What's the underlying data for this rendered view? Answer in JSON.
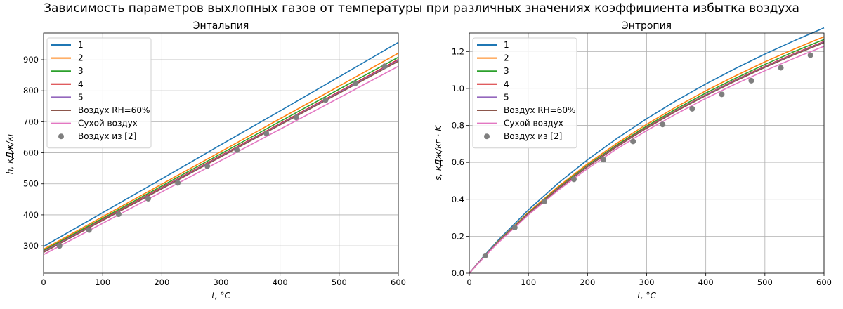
{
  "figure": {
    "suptitle": "Зависимость параметров выхлопных газов от температуры при различных значениях коэффициента избытка воздуха"
  },
  "colors": {
    "1": "#1f77b4",
    "2": "#ff7f0e",
    "3": "#2ca02c",
    "4": "#d62728",
    "5": "#9467bd",
    "Воздух RH=60%": "#8c564b",
    "Сухой воздух": "#e377c2",
    "Воздух из [2]": "#7f7f7f"
  },
  "chart_data": [
    {
      "type": "line",
      "title": "Энтальпия",
      "xlabel": "t, °C",
      "ylabel": "h, кДж/кг",
      "xlim": [
        0,
        600
      ],
      "ylim": [
        212,
        986
      ],
      "xticks": [
        0,
        100,
        200,
        300,
        400,
        500,
        600
      ],
      "yticks": [
        300,
        400,
        500,
        600,
        700,
        800,
        900
      ],
      "grid": true,
      "legend_position": "top-left",
      "x": [
        0,
        100,
        200,
        300,
        400,
        500,
        600
      ],
      "series": [
        {
          "name": "1",
          "values": [
            298,
            407,
            516,
            626,
            735,
            845,
            956
          ]
        },
        {
          "name": "2",
          "values": [
            289,
            394,
            499,
            604,
            710,
            815,
            921
          ]
        },
        {
          "name": "3",
          "values": [
            285,
            389,
            493,
            597,
            701,
            805,
            908
          ]
        },
        {
          "name": "4",
          "values": [
            282,
            385,
            488,
            591,
            694,
            797,
            901
          ]
        },
        {
          "name": "5",
          "values": [
            281,
            383,
            486,
            589,
            692,
            795,
            898
          ]
        },
        {
          "name": "Воздух RH=60%",
          "values": [
            279,
            382,
            484,
            587,
            690,
            792,
            895
          ]
        },
        {
          "name": "Сухой воздух",
          "values": [
            272,
            373,
            474,
            575,
            676,
            777,
            879
          ]
        }
      ],
      "scatter": {
        "name": "Воздух из [2]",
        "x": [
          27,
          77,
          127,
          177,
          227,
          277,
          327,
          377,
          427,
          477,
          527,
          577
        ],
        "y": [
          300,
          351,
          402,
          452,
          503,
          557,
          609,
          662,
          714,
          770,
          823,
          879
        ]
      }
    },
    {
      "type": "line",
      "title": "Энтропия",
      "xlabel": "t, °C",
      "ylabel": "s, кДж/кг · K",
      "xlim": [
        0,
        600
      ],
      "ylim": [
        0.0,
        1.3
      ],
      "xticks": [
        0,
        100,
        200,
        300,
        400,
        500,
        600
      ],
      "yticks": [
        0.0,
        0.2,
        0.4,
        0.6,
        0.8,
        1.0,
        1.2
      ],
      "grid": true,
      "legend_position": "top-left",
      "x": [
        0,
        25,
        50,
        100,
        150,
        200,
        250,
        300,
        350,
        400,
        450,
        500,
        550,
        600
      ],
      "series": [
        {
          "name": "1",
          "values": [
            0.0,
            0.094,
            0.182,
            0.343,
            0.486,
            0.614,
            0.73,
            0.836,
            0.934,
            1.024,
            1.108,
            1.186,
            1.259,
            1.328
          ]
        },
        {
          "name": "2",
          "values": [
            0.0,
            0.091,
            0.176,
            0.33,
            0.468,
            0.592,
            0.704,
            0.806,
            0.9,
            0.987,
            1.068,
            1.144,
            1.214,
            1.28
          ]
        },
        {
          "name": "3",
          "values": [
            0.0,
            0.09,
            0.174,
            0.326,
            0.462,
            0.584,
            0.695,
            0.796,
            0.889,
            0.975,
            1.055,
            1.13,
            1.2,
            1.265
          ]
        },
        {
          "name": "4",
          "values": [
            0.0,
            0.089,
            0.172,
            0.323,
            0.458,
            0.579,
            0.689,
            0.789,
            0.881,
            0.966,
            1.046,
            1.12,
            1.189,
            1.254
          ]
        },
        {
          "name": "5",
          "values": [
            0.0,
            0.089,
            0.172,
            0.322,
            0.457,
            0.578,
            0.687,
            0.787,
            0.879,
            0.964,
            1.043,
            1.117,
            1.186,
            1.251
          ]
        },
        {
          "name": "Воздух RH=60%",
          "values": [
            0.0,
            0.088,
            0.171,
            0.321,
            0.455,
            0.576,
            0.685,
            0.785,
            0.877,
            0.961,
            1.04,
            1.114,
            1.183,
            1.248
          ]
        },
        {
          "name": "Сухой воздух",
          "values": [
            0.0,
            0.087,
            0.168,
            0.316,
            0.448,
            0.566,
            0.674,
            0.772,
            0.862,
            0.946,
            1.024,
            1.096,
            1.164,
            1.228
          ]
        }
      ],
      "scatter": {
        "name": "Воздух из [2]",
        "x": [
          27,
          77,
          127,
          177,
          227,
          277,
          327,
          377,
          427,
          477,
          527,
          577
        ],
        "y": [
          0.095,
          0.247,
          0.388,
          0.508,
          0.615,
          0.713,
          0.805,
          0.89,
          0.968,
          1.042,
          1.112,
          1.18
        ]
      }
    }
  ]
}
